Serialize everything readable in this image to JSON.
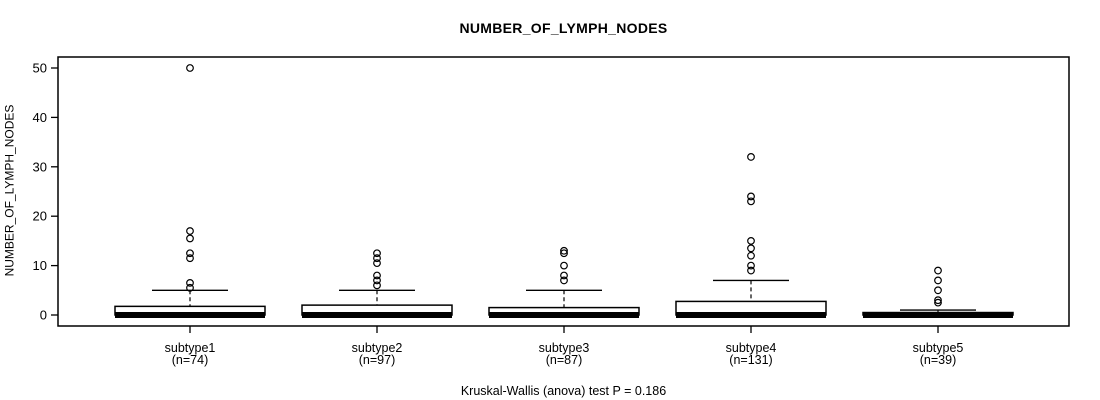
{
  "figure": {
    "title": "NUMBER_OF_LYMPH_NODES",
    "y_axis_label": "NUMBER_OF_LYMPH_NODES",
    "caption": "Kruskal-Wallis (anova) test P = 0.186"
  },
  "colors": {
    "foreground": "#000000",
    "background": "#ffffff",
    "box_fill": "#ffffff"
  },
  "chart_data": {
    "type": "boxplot",
    "title": "NUMBER_OF_LYMPH_NODES",
    "ylabel": "NUMBER_OF_LYMPH_NODES",
    "xlabel": "",
    "footer": "Kruskal-Wallis (anova) test P = 0.186",
    "ylim": [
      0,
      50
    ],
    "yticks": [
      0,
      10,
      20,
      30,
      40,
      50
    ],
    "grid": false,
    "legend": "none",
    "groups": [
      {
        "label": "subtype1",
        "n_label": "(n=74)",
        "n": 74,
        "whisker_low": 0,
        "q1": 0,
        "median": 0,
        "q3": 1.75,
        "whisker_high": 5,
        "outliers": [
          5.5,
          6.5,
          11.5,
          12.5,
          15.5,
          17,
          50
        ]
      },
      {
        "label": "subtype2",
        "n_label": "(n=97)",
        "n": 97,
        "whisker_low": 0,
        "q1": 0,
        "median": 0,
        "q3": 2,
        "whisker_high": 5,
        "outliers": [
          6,
          7,
          8,
          10.5,
          11.5,
          12.5
        ]
      },
      {
        "label": "subtype3",
        "n_label": "(n=87)",
        "n": 87,
        "whisker_low": 0,
        "q1": 0,
        "median": 0,
        "q3": 1.5,
        "whisker_high": 5,
        "outliers": [
          7,
          8,
          10,
          12.5,
          13
        ]
      },
      {
        "label": "subtype4",
        "n_label": "(n=131)",
        "n": 131,
        "whisker_low": 0,
        "q1": 0,
        "median": 0,
        "q3": 2.75,
        "whisker_high": 7,
        "outliers": [
          9,
          10,
          12,
          13.5,
          15,
          23,
          24,
          32
        ]
      },
      {
        "label": "subtype5",
        "n_label": "(n=39)",
        "n": 39,
        "whisker_low": 0,
        "q1": 0,
        "median": 0,
        "q3": 0.5,
        "whisker_high": 1,
        "outliers": [
          2.5,
          3,
          5,
          7,
          9
        ]
      }
    ]
  }
}
